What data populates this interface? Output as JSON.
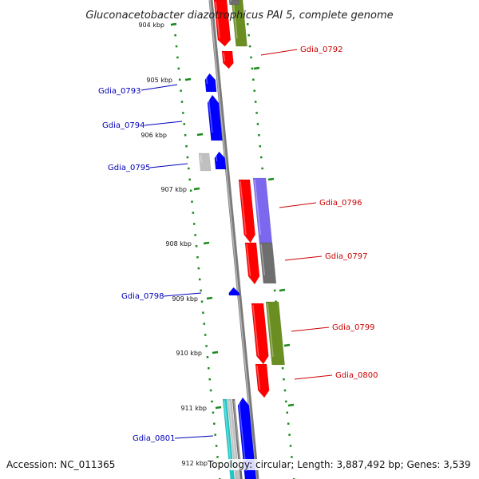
{
  "title": "Gluconacetobacter diazotrophicus PAI 5, complete genome",
  "footer": {
    "accession": "Accession: NC_011365",
    "topology": "Topology: circular; Length: 3,887,492 bp; Genes: 3,539"
  },
  "kbp_ticks": [
    "904 kbp",
    "905 kbp",
    "906 kbp",
    "907 kbp",
    "908 kbp",
    "909 kbp",
    "910 kbp",
    "911 kbp",
    "912 kbp"
  ],
  "genes_left": [
    "Gdia_0793",
    "Gdia_0794",
    "Gdia_0795",
    "Gdia_0798",
    "Gdia_0801"
  ],
  "genes_right": [
    "Gdia_0792",
    "Gdia_0796",
    "Gdia_0797",
    "Gdia_0799",
    "Gdia_0800"
  ],
  "colors": {
    "left_label": "#0000bb",
    "right_label": "#cc0000",
    "red": "#ff0000",
    "blue": "#0000ff",
    "olive": "#6b8e23",
    "purple": "#7b68ee",
    "gray": "#6e6e6e",
    "lightgray": "#c0c0c0",
    "cyan": "#1ec8c8",
    "tick_green": "#1a8a1a",
    "backbone": "#8c8c8c"
  }
}
